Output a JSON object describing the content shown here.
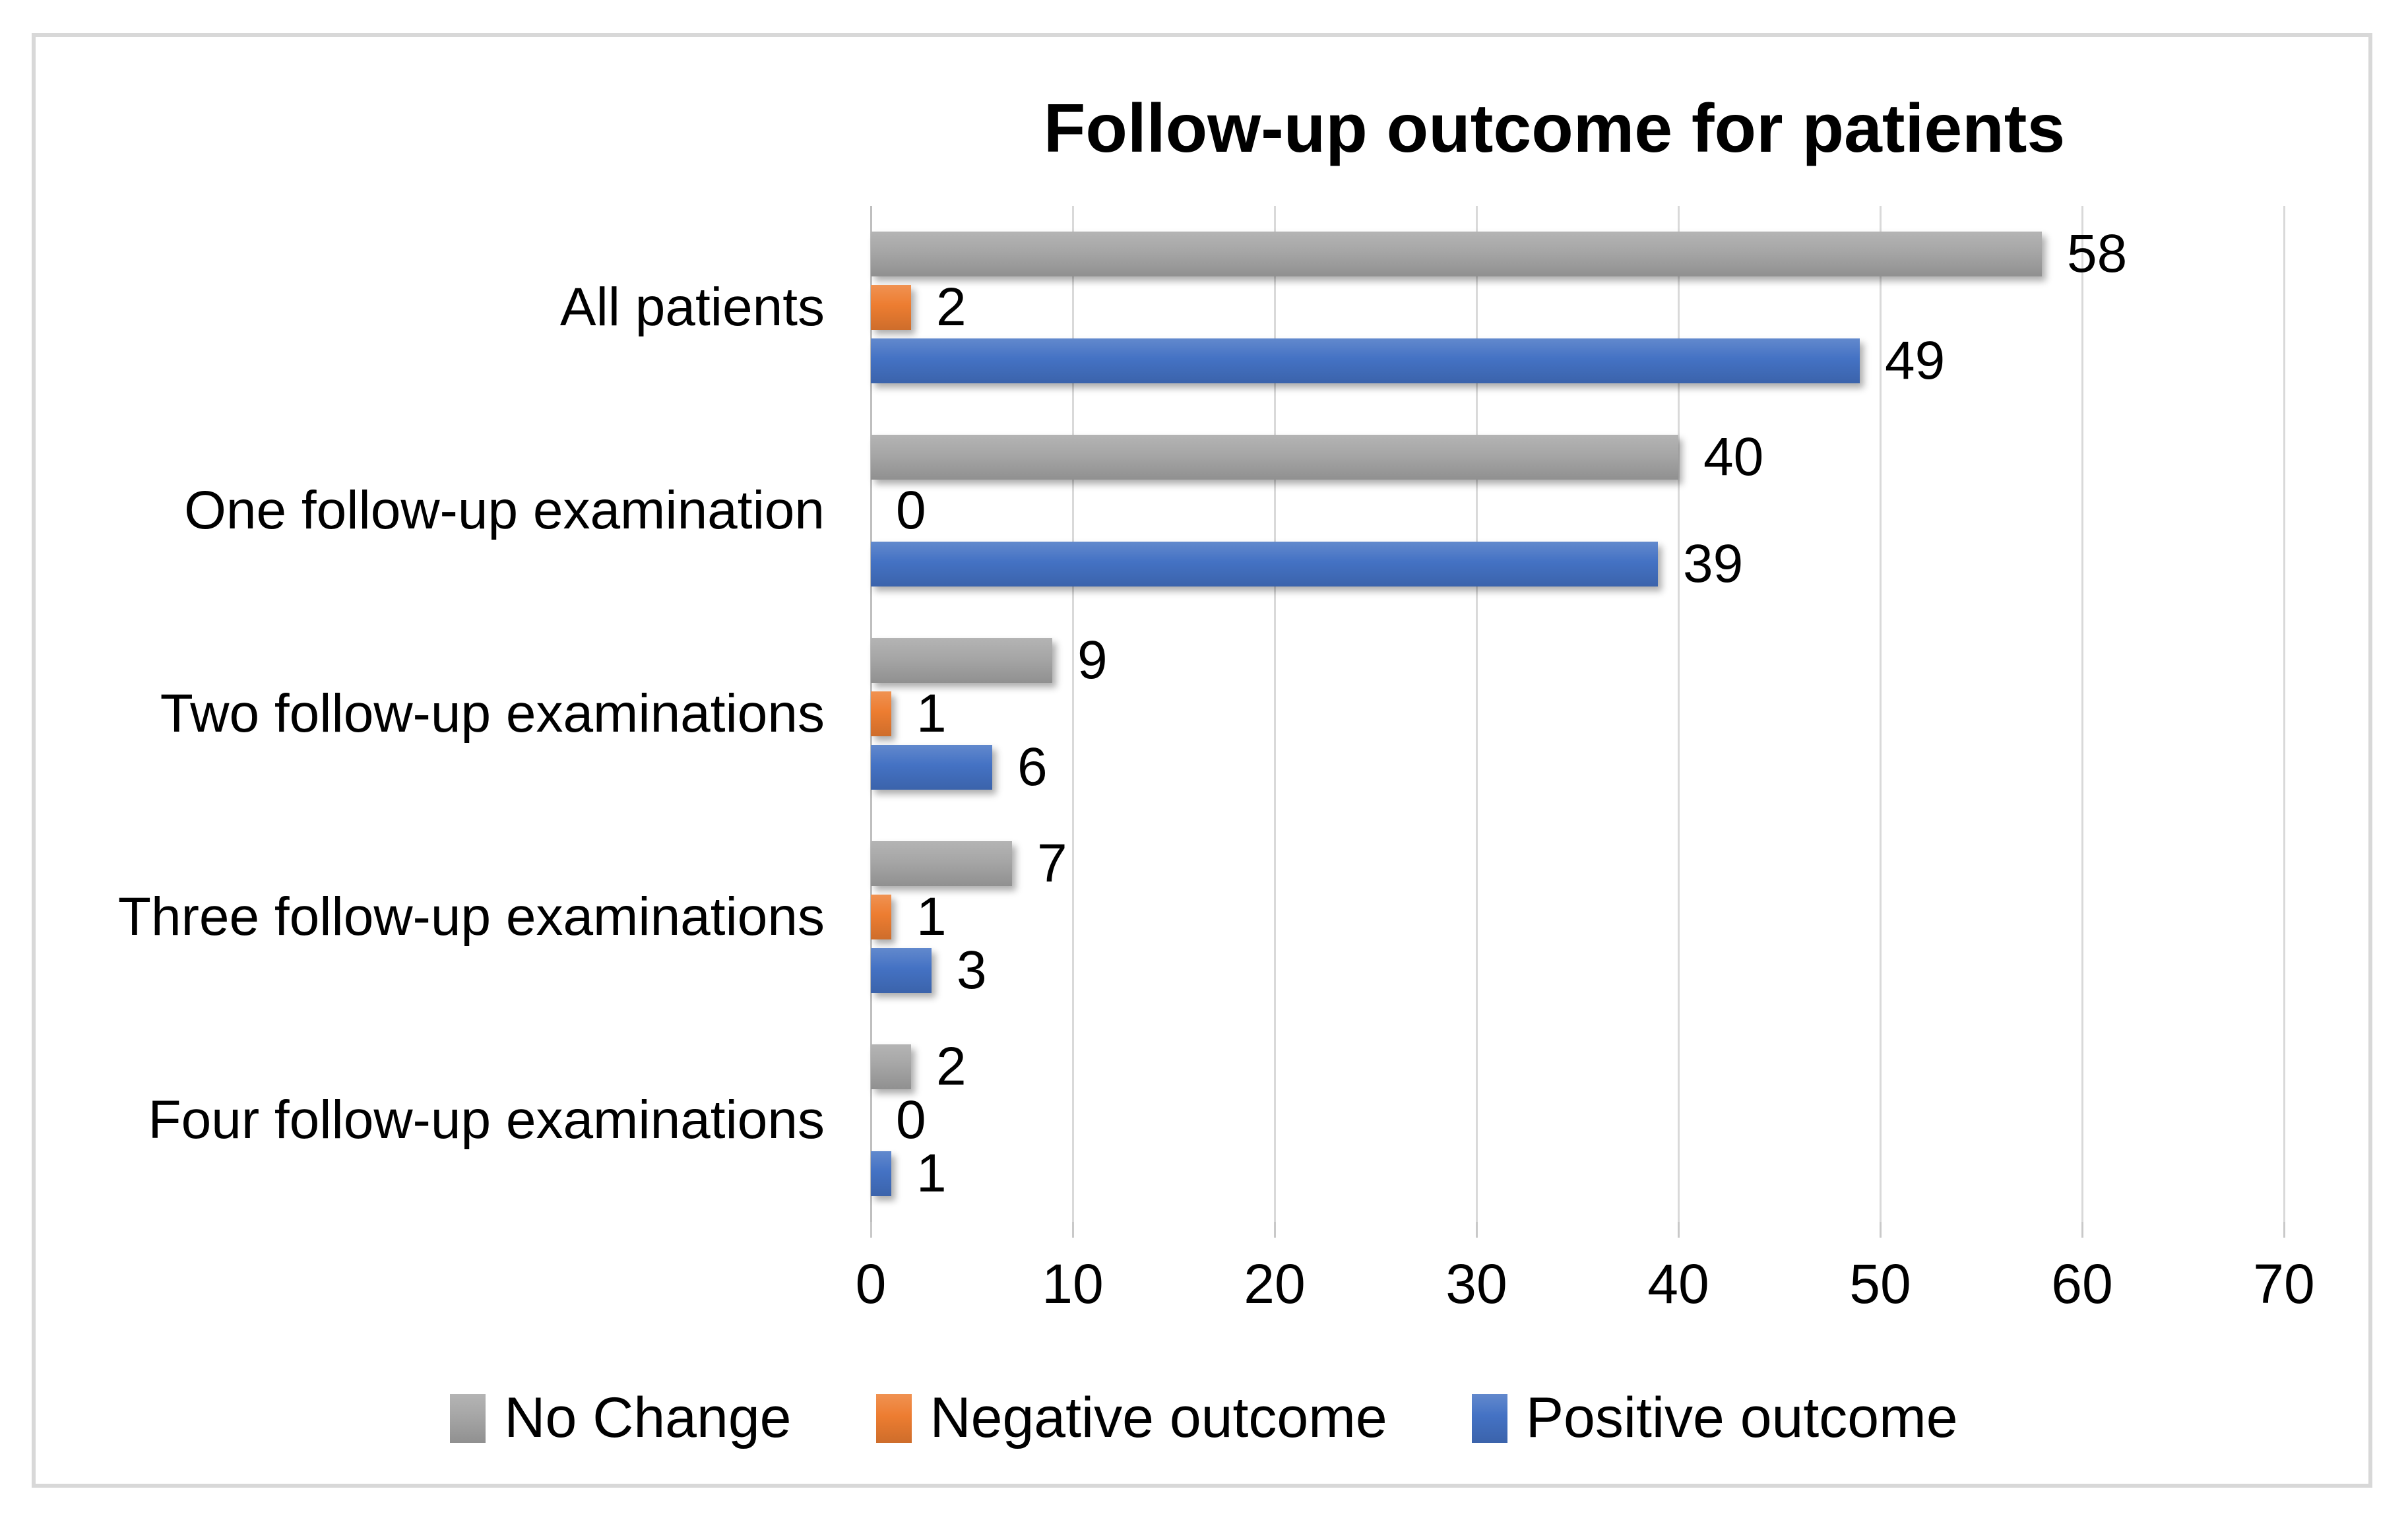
{
  "title": "Follow-up outcome for patients",
  "chart_data": {
    "type": "bar",
    "orientation": "horizontal",
    "title": "Follow-up outcome for patients",
    "categories": [
      "All patients",
      "One follow-up examination",
      "Two follow-up examinations",
      "Three follow-up examinations",
      "Four follow-up examinations"
    ],
    "series": [
      {
        "name": "No Change",
        "color": "#A6A6A6",
        "values": [
          58,
          40,
          9,
          7,
          2
        ]
      },
      {
        "name": "Negative outcome",
        "color": "#ED7D31",
        "values": [
          2,
          0,
          1,
          1,
          0
        ]
      },
      {
        "name": "Positive outcome",
        "color": "#4472C4",
        "values": [
          49,
          39,
          6,
          3,
          1
        ]
      }
    ],
    "x_axis": {
      "min": 0,
      "max": 70,
      "tick_step": 10,
      "tick_labels": [
        "0",
        "10",
        "20",
        "30",
        "40",
        "50",
        "60",
        "70"
      ]
    },
    "grid": true,
    "data_labels": true,
    "legend_position": "bottom",
    "colors": {
      "gridline": "#D9D9D9",
      "axis_line": "#BFBFBF",
      "text": "#000000",
      "frame_border": "#D8D8D8",
      "background": "#FFFFFF"
    }
  }
}
